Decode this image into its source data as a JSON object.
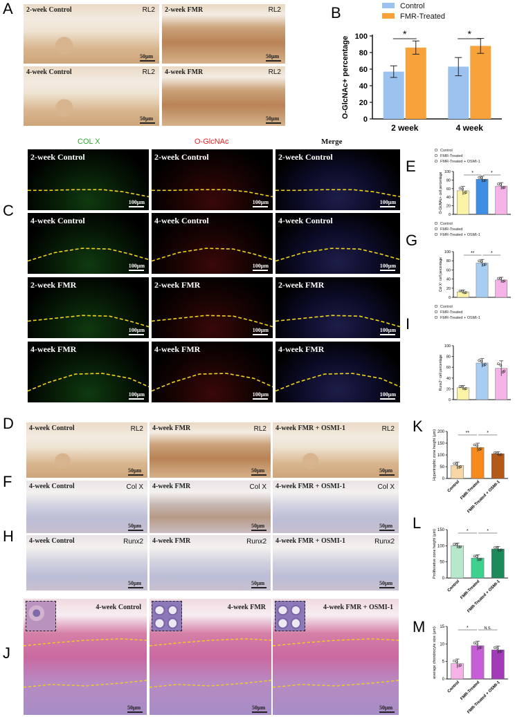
{
  "panel_letters": {
    "A": "A",
    "B": "B",
    "C": "C",
    "D": "D",
    "E": "E",
    "F": "F",
    "G": "G",
    "H": "H",
    "I": "I",
    "J": "J",
    "K": "K",
    "L": "L",
    "M": "M"
  },
  "panelA": {
    "tiles": [
      {
        "label": "2-week Control",
        "tag": "RL2",
        "scale": "50μm"
      },
      {
        "label": "2-week FMR",
        "tag": "RL2",
        "scale": "50μm"
      },
      {
        "label": "4-week Control",
        "tag": "RL2",
        "scale": "50μm"
      },
      {
        "label": "4-week FMR",
        "tag": "RL2",
        "scale": "50μm"
      }
    ]
  },
  "panelC": {
    "headers": {
      "colx": "COL X",
      "oglc": "O-GlcNAc",
      "merge": "Merge"
    },
    "header_colors": {
      "colx": "#2aa52a",
      "oglc": "#e02020",
      "merge": "#111111"
    },
    "rows": [
      "2-week Control",
      "4-week Control",
      "2-week FMR",
      "4-week FMR"
    ],
    "scale": "100μm"
  },
  "panelDFH": {
    "rows": [
      {
        "tag": "RL2",
        "labels": [
          "4-week Control",
          "4-week FMR",
          "4-week FMR + OSMI-1"
        ]
      },
      {
        "tag": "Col X",
        "labels": [
          "4-week Control",
          "4-week FMR",
          "4-week FMR + OSMI-1"
        ]
      },
      {
        "tag": "Runx2",
        "labels": [
          "4-week Control",
          "4-week FMR",
          "4-week FMR + OSMI-1"
        ]
      }
    ],
    "scale": "50μm"
  },
  "panelJ": {
    "labels": [
      "4-week Control",
      "4-week FMR",
      "4-week FMR + OSMI-1"
    ],
    "scale": "50μm"
  },
  "legend_three": [
    "Control",
    "FMR-Treated",
    "FMR-Treated + OSMI-1"
  ],
  "chart_data": [
    {
      "id": "B",
      "type": "bar",
      "legend": [
        "Control",
        "FMR-Treated"
      ],
      "colors": [
        "#9cc3f0",
        "#f7a23a"
      ],
      "categories": [
        "2 week",
        "4 week"
      ],
      "series": [
        {
          "name": "Control",
          "values": [
            57,
            63
          ],
          "errors": [
            7,
            11
          ]
        },
        {
          "name": "FMR-Treated",
          "values": [
            86,
            88
          ],
          "errors": [
            8,
            9
          ]
        }
      ],
      "ylabel": "O-GlcNAc+ percentage",
      "ylim": [
        0,
        100
      ],
      "yticks": [
        0,
        20,
        40,
        60,
        80,
        100
      ],
      "significance": [
        "*",
        "*"
      ]
    },
    {
      "id": "E",
      "type": "bar",
      "categories": [
        "Control",
        "FMR-Treated",
        "FMR-Treated + OSMI-1"
      ],
      "values": [
        55,
        82,
        66
      ],
      "errors": [
        10,
        7,
        8
      ],
      "colors": [
        "#fbf3a6",
        "#3f8ee6",
        "#f4b2e6"
      ],
      "ylabel": "O-GlcNAc+ cell percentage",
      "ylim": [
        0,
        100
      ],
      "yticks": [
        0,
        20,
        40,
        60,
        80,
        100
      ],
      "significance": [
        "*",
        "*"
      ]
    },
    {
      "id": "G",
      "type": "bar",
      "categories": [
        "Control",
        "FMR-Treated",
        "FMR-Treated + OSMI-1"
      ],
      "values": [
        12,
        75,
        38
      ],
      "errors": [
        4,
        8,
        6
      ],
      "colors": [
        "#fbf3a6",
        "#a8cdf2",
        "#f4b2e6"
      ],
      "ylabel": "Col X⁺ cell percentage",
      "ylim": [
        0,
        100
      ],
      "yticks": [
        0,
        20,
        40,
        60,
        80,
        100
      ],
      "significance": [
        "**",
        "*"
      ]
    },
    {
      "id": "I",
      "type": "bar",
      "categories": [
        "Control",
        "FMR-Treated",
        "FMR-Treated + OSMI-1"
      ],
      "values": [
        22,
        68,
        58
      ],
      "errors": [
        4,
        8,
        14
      ],
      "colors": [
        "#fbf3a6",
        "#a8cdf2",
        "#f4b2e6"
      ],
      "ylabel": "Runx2⁺ cell percentage",
      "ylim": [
        0,
        100
      ],
      "yticks": [
        0,
        20,
        40,
        60,
        80,
        100
      ],
      "significance": []
    },
    {
      "id": "K",
      "type": "bar",
      "categories": [
        "Control",
        "FMR-Treated",
        "FMR-Treated + OSMI-1"
      ],
      "values": [
        55,
        132,
        105
      ],
      "errors": [
        15,
        18,
        8
      ],
      "colors": [
        "#f7d7a6",
        "#f78a1c",
        "#b35a18"
      ],
      "ylabel": "Hypertrophic zone height (μm)",
      "ylim": [
        0,
        200
      ],
      "yticks": [
        0,
        50,
        100,
        150,
        200
      ],
      "significance": [
        "**",
        "*"
      ]
    },
    {
      "id": "L",
      "type": "bar",
      "categories": [
        "Control",
        "FMR-Treated",
        "FMR-Treated + OSMI-1"
      ],
      "values": [
        100,
        62,
        90
      ],
      "errors": [
        8,
        10,
        8
      ],
      "colors": [
        "#b8e8cc",
        "#3ed08d",
        "#1c8a5a"
      ],
      "ylabel": "Proliferative zone height (μm)",
      "ylim": [
        0,
        150
      ],
      "yticks": [
        0,
        50,
        100,
        150
      ],
      "significance": [
        "*",
        "*"
      ]
    },
    {
      "id": "M",
      "type": "bar",
      "categories": [
        "Control",
        "FMR-Treated",
        "FMR-Treated + OSMI-1"
      ],
      "values": [
        4.4,
        9.5,
        8.3
      ],
      "errors": [
        1.3,
        1.3,
        1.1
      ],
      "colors": [
        "#f4b2e6",
        "#c65fd6",
        "#a13bb8"
      ],
      "ylabel": "average chondrocyte size (μm)",
      "ylim": [
        0,
        15
      ],
      "yticks": [
        0,
        5,
        10,
        15
      ],
      "significance": [
        "*",
        "N.S."
      ]
    }
  ]
}
